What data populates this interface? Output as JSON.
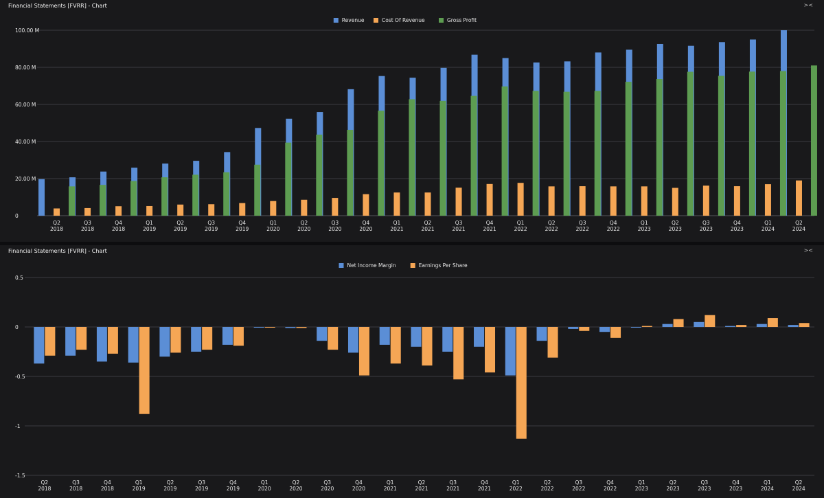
{
  "panels": {
    "top": {
      "title": "Financial Statements [FVRR] - Chart",
      "icon": "collapse-arrows-icon"
    },
    "bottom": {
      "title": "Financial Statements [FVRR] - Chart",
      "icon": "collapse-arrows-icon"
    }
  },
  "chart_data": [
    {
      "type": "bar",
      "categories": [
        "Q2 2018",
        "Q3 2018",
        "Q4 2018",
        "Q1 2019",
        "Q2 2019",
        "Q3 2019",
        "Q4 2019",
        "Q1 2020",
        "Q2 2020",
        "Q3 2020",
        "Q4 2020",
        "Q1 2021",
        "Q2 2021",
        "Q3 2021",
        "Q4 2021",
        "Q1 2022",
        "Q2 2022",
        "Q3 2022",
        "Q4 2022",
        "Q1 2023",
        "Q2 2023",
        "Q3 2023",
        "Q4 2023",
        "Q1 2024",
        "Q2 2024"
      ],
      "series": [
        {
          "name": "Revenue",
          "color": "#5b8ed6",
          "values": [
            19.7,
            20.7,
            23.8,
            25.9,
            28.1,
            29.6,
            34.3,
            47.3,
            52.3,
            55.9,
            68.2,
            75.3,
            74.4,
            79.7,
            86.8,
            85.0,
            82.6,
            83.2,
            88.0,
            89.5,
            92.6,
            91.6,
            93.6,
            95.0,
            100.0
          ]
        },
        {
          "name": "Cost Of Revenue",
          "color": "#f5a655",
          "values": [
            3.9,
            4.1,
            5.1,
            5.2,
            6.0,
            6.2,
            6.8,
            7.9,
            8.6,
            9.6,
            11.6,
            12.5,
            12.5,
            15.1,
            17.1,
            17.7,
            15.8,
            15.9,
            15.8,
            15.8,
            15.0,
            16.2,
            15.9,
            17.0,
            19.0
          ]
        },
        {
          "name": "Gross Profit",
          "color": "#5d9c51",
          "values": [
            15.8,
            16.6,
            18.7,
            20.7,
            22.1,
            23.4,
            27.5,
            39.4,
            43.7,
            46.3,
            56.6,
            62.8,
            61.9,
            64.6,
            69.7,
            67.3,
            66.8,
            67.3,
            72.2,
            73.7,
            77.6,
            75.4,
            77.7,
            78.0,
            81.0
          ]
        }
      ],
      "yticks": [
        {
          "value": 0,
          "label": "0"
        },
        {
          "value": 20,
          "label": "20.00 M"
        },
        {
          "value": 40,
          "label": "40.00 M"
        },
        {
          "value": 60,
          "label": "60.00 M"
        },
        {
          "value": 80,
          "label": "80.00 M"
        },
        {
          "value": 100,
          "label": "100.00 M"
        }
      ],
      "ylim": [
        0,
        100
      ],
      "grid": true,
      "legend": "top-center"
    },
    {
      "type": "bar",
      "categories": [
        "Q2 2018",
        "Q3 2018",
        "Q4 2018",
        "Q1 2019",
        "Q2 2019",
        "Q3 2019",
        "Q4 2019",
        "Q1 2020",
        "Q2 2020",
        "Q3 2020",
        "Q4 2020",
        "Q1 2021",
        "Q2 2021",
        "Q3 2021",
        "Q4 2021",
        "Q1 2022",
        "Q2 2022",
        "Q3 2022",
        "Q4 2022",
        "Q1 2023",
        "Q2 2023",
        "Q3 2023",
        "Q4 2023",
        "Q1 2024",
        "Q2 2024"
      ],
      "series": [
        {
          "name": "Net Income Margin",
          "color": "#5b8ed6",
          "values": [
            -0.37,
            -0.29,
            -0.35,
            -0.36,
            -0.3,
            -0.25,
            -0.18,
            -0.005,
            -0.01,
            -0.14,
            -0.26,
            -0.18,
            -0.2,
            -0.25,
            -0.2,
            -0.49,
            -0.14,
            -0.02,
            -0.05,
            -0.005,
            0.03,
            0.05,
            0.01,
            0.03,
            0.02
          ]
        },
        {
          "name": "Earnings Per Share",
          "color": "#f5a655",
          "values": [
            -0.29,
            -0.23,
            -0.27,
            -0.88,
            -0.26,
            -0.23,
            -0.19,
            -0.005,
            -0.01,
            -0.23,
            -0.49,
            -0.37,
            -0.39,
            -0.53,
            -0.46,
            -1.13,
            -0.31,
            -0.04,
            -0.11,
            0.01,
            0.08,
            0.12,
            0.02,
            0.09,
            0.04
          ]
        }
      ],
      "yticks": [
        {
          "value": 0.5,
          "label": "0.5"
        },
        {
          "value": 0,
          "label": "0"
        },
        {
          "value": -0.5,
          "label": "-0.5"
        },
        {
          "value": -1,
          "label": "-1"
        },
        {
          "value": -1.5,
          "label": "-1.5"
        }
      ],
      "ylim": [
        -1.5,
        0.5
      ],
      "grid": true,
      "legend": "top-center"
    }
  ]
}
